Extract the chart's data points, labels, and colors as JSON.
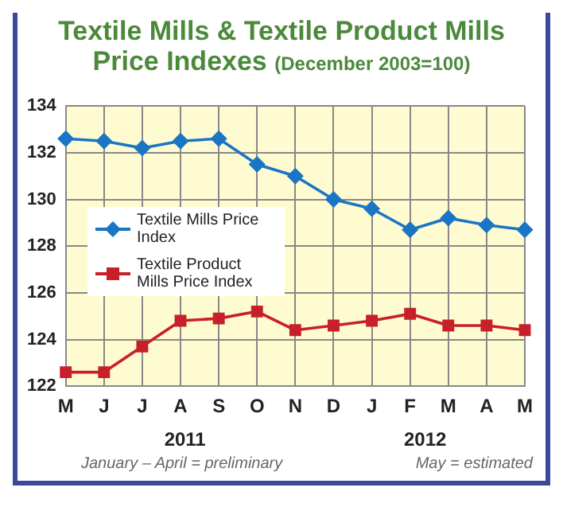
{
  "chart_data": {
    "type": "line",
    "title": "Textile Mills & Textile Product Mills Price Indexes",
    "subtitle": "(December 2003=100)",
    "categories": [
      "M",
      "J",
      "J",
      "A",
      "S",
      "O",
      "N",
      "D",
      "J",
      "F",
      "M",
      "A",
      "M"
    ],
    "series": [
      {
        "name": "Textile Mills Price Index",
        "color": "#1a75c4",
        "values": [
          132.6,
          132.5,
          132.2,
          132.5,
          132.6,
          131.5,
          131.0,
          130.0,
          129.6,
          128.7,
          129.2,
          128.9,
          128.7
        ],
        "marker": "diamond"
      },
      {
        "name": "Textile Product Mills Price Index",
        "color": "#c8202a",
        "values": [
          122.6,
          122.6,
          123.7,
          124.8,
          124.9,
          125.2,
          124.4,
          124.6,
          124.8,
          125.1,
          124.6,
          124.6,
          124.4
        ],
        "marker": "square"
      }
    ],
    "ylim": [
      122,
      134
    ],
    "yticks": [
      122,
      124,
      126,
      128,
      130,
      132,
      134
    ],
    "grid": true,
    "legend": "left",
    "annotations": [
      "2011",
      "2012",
      "January – April = preliminary",
      "May = estimated"
    ]
  }
}
